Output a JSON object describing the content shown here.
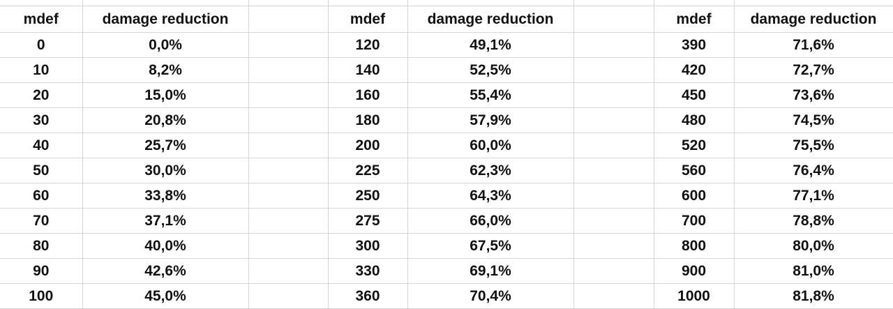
{
  "sheet": {
    "columns": [
      {
        "headers": [
          "mdef",
          "damage reduction"
        ],
        "rows": [
          [
            "0",
            "0,0%"
          ],
          [
            "10",
            "8,2%"
          ],
          [
            "20",
            "15,0%"
          ],
          [
            "30",
            "20,8%"
          ],
          [
            "40",
            "25,7%"
          ],
          [
            "50",
            "30,0%"
          ],
          [
            "60",
            "33,8%"
          ],
          [
            "70",
            "37,1%"
          ],
          [
            "80",
            "40,0%"
          ],
          [
            "90",
            "42,6%"
          ],
          [
            "100",
            "45,0%"
          ]
        ]
      },
      {
        "headers": [
          "mdef",
          "damage reduction"
        ],
        "rows": [
          [
            "120",
            "49,1%"
          ],
          [
            "140",
            "52,5%"
          ],
          [
            "160",
            "55,4%"
          ],
          [
            "180",
            "57,9%"
          ],
          [
            "200",
            "60,0%"
          ],
          [
            "225",
            "62,3%"
          ],
          [
            "250",
            "64,3%"
          ],
          [
            "275",
            "66,0%"
          ],
          [
            "300",
            "67,5%"
          ],
          [
            "330",
            "69,1%"
          ],
          [
            "360",
            "70,4%"
          ]
        ]
      },
      {
        "headers": [
          "mdef",
          "damage reduction"
        ],
        "rows": [
          [
            "390",
            "71,6%"
          ],
          [
            "420",
            "72,7%"
          ],
          [
            "450",
            "73,6%"
          ],
          [
            "480",
            "74,5%"
          ],
          [
            "520",
            "75,5%"
          ],
          [
            "560",
            "76,4%"
          ],
          [
            "600",
            "77,1%"
          ],
          [
            "700",
            "78,8%"
          ],
          [
            "800",
            "80,0%"
          ],
          [
            "900",
            "81,0%"
          ],
          [
            "1000",
            "81,8%"
          ]
        ]
      }
    ]
  },
  "colors": {
    "gridline": "#d4d4d4",
    "text": "#111111",
    "background": "#ffffff"
  }
}
